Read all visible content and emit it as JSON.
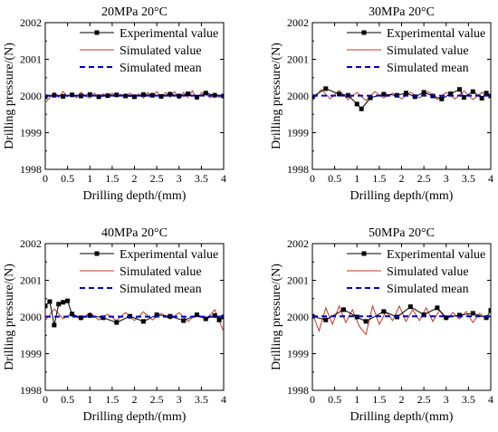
{
  "chart_data": [
    {
      "type": "line",
      "title": "20MPa 20°C",
      "xlabel": "Drilling depth/(mm)",
      "ylabel": "Drilling pressure/(N)",
      "xlim": [
        0,
        4
      ],
      "ylim": [
        1998,
        2002
      ],
      "xticks": [
        0,
        0.5,
        1,
        1.5,
        2,
        2.5,
        3,
        3.5,
        4
      ],
      "xtick_labels": [
        "0",
        "0.5",
        "1",
        "1.5",
        "2",
        "2.5",
        "3",
        "3.5",
        "4"
      ],
      "yticks": [
        1998,
        1999,
        2000,
        2001,
        2002
      ],
      "ytick_labels": [
        "1998",
        "1999",
        "2000",
        "2001",
        "2002"
      ],
      "legend_position": "top-right",
      "grid": false,
      "series": [
        {
          "name": "Experimental value",
          "style": "line-square-markers",
          "color": "#000000",
          "x": [
            0,
            0.2,
            0.4,
            0.6,
            0.8,
            1.0,
            1.2,
            1.4,
            1.6,
            1.8,
            2.0,
            2.2,
            2.4,
            2.6,
            2.8,
            3.0,
            3.2,
            3.4,
            3.6,
            3.8,
            4.0
          ],
          "y": [
            1999.98,
            2000.02,
            1999.99,
            2000.03,
            2000.0,
            2000.04,
            1999.98,
            2000.01,
            2000.03,
            2000.0,
            1999.98,
            2000.04,
            2000.02,
            1999.99,
            2000.05,
            2000.0,
            2000.06,
            1999.97,
            2000.08,
            2000.02,
            2000.0
          ]
        },
        {
          "name": "Simulated value",
          "style": "line",
          "color": "#c0392b",
          "x": [
            0,
            0.1,
            0.2,
            0.3,
            0.4,
            0.5,
            0.6,
            0.7,
            0.8,
            0.9,
            1.0,
            1.1,
            1.2,
            1.3,
            1.4,
            1.5,
            1.6,
            1.7,
            1.8,
            1.9,
            2.0,
            2.1,
            2.2,
            2.3,
            2.4,
            2.5,
            2.6,
            2.7,
            2.8,
            2.9,
            3.0,
            3.1,
            3.2,
            3.3,
            3.4,
            3.5,
            3.6,
            3.7,
            3.8,
            3.9,
            4.0
          ],
          "y": [
            1999.82,
            1999.95,
            2000.1,
            1999.96,
            2000.12,
            1999.98,
            2000.08,
            1999.95,
            2000.1,
            2000.0,
            1999.94,
            2000.08,
            1999.97,
            2000.06,
            1999.96,
            2000.08,
            1999.98,
            2000.05,
            1999.96,
            2000.08,
            1999.98,
            2000.06,
            1999.94,
            2000.1,
            1999.96,
            2000.12,
            1999.94,
            2000.1,
            1999.96,
            2000.12,
            1999.92,
            2000.1,
            1999.96,
            2000.14,
            1999.9,
            2000.1,
            2000.04,
            1999.95,
            2000.08,
            1999.96,
            2000.0
          ]
        },
        {
          "name": "Simulated mean",
          "style": "dashed",
          "color": "#0000cc",
          "x": [
            0,
            4
          ],
          "y": [
            2000.01,
            2000.01
          ]
        }
      ]
    },
    {
      "type": "line",
      "title": "30MPa 20°C",
      "xlabel": "Drilling depth/(mm)",
      "ylabel": "Drilling pressure/(N)",
      "xlim": [
        0,
        4
      ],
      "ylim": [
        1998,
        2002
      ],
      "xticks": [
        0,
        0.5,
        1,
        1.5,
        2,
        2.5,
        3,
        3.5,
        4
      ],
      "xtick_labels": [
        "0",
        "0.5",
        "1",
        "1.5",
        "2",
        "2.5",
        "3",
        "3.5",
        "4"
      ],
      "yticks": [
        1998,
        1999,
        2000,
        2001,
        2002
      ],
      "ytick_labels": [
        "1998",
        "1999",
        "2000",
        "2001",
        "2002"
      ],
      "legend_position": "top-right",
      "grid": false,
      "series": [
        {
          "name": "Experimental value",
          "style": "line-square-markers",
          "color": "#000000",
          "x": [
            0,
            0.3,
            0.6,
            0.8,
            1.0,
            1.1,
            1.3,
            1.6,
            1.9,
            2.1,
            2.3,
            2.5,
            2.7,
            2.9,
            3.1,
            3.3,
            3.4,
            3.6,
            3.8,
            3.9,
            4.0
          ],
          "y": [
            1999.98,
            2000.2,
            2000.05,
            2000.02,
            1999.78,
            1999.65,
            1999.95,
            2000.05,
            2000.02,
            2000.08,
            1999.98,
            2000.1,
            2000.0,
            1999.92,
            2000.06,
            2000.18,
            1999.96,
            2000.12,
            1999.94,
            2000.08,
            2000.0
          ]
        },
        {
          "name": "Simulated value",
          "style": "line",
          "color": "#c0392b",
          "x": [
            0,
            0.2,
            0.4,
            0.6,
            0.8,
            1.0,
            1.2,
            1.4,
            1.6,
            1.8,
            2.0,
            2.2,
            2.4,
            2.6,
            2.8,
            3.0,
            3.2,
            3.4,
            3.6,
            3.8,
            4.0
          ],
          "y": [
            1999.88,
            2000.18,
            1999.92,
            2000.15,
            1999.9,
            2000.1,
            1999.88,
            2000.12,
            1999.95,
            2000.08,
            1999.92,
            2000.1,
            1999.95,
            2000.12,
            1999.9,
            2000.1,
            1999.92,
            2000.14,
            1999.9,
            2000.1,
            1999.96
          ]
        },
        {
          "name": "Simulated mean",
          "style": "dashed",
          "color": "#0000cc",
          "x": [
            0,
            4
          ],
          "y": [
            2000.01,
            2000.01
          ]
        }
      ]
    },
    {
      "type": "line",
      "title": "40MPa 20°C",
      "xlabel": "Drilling depth/(mm)",
      "ylabel": "Drilling pressure/(N)",
      "xlim": [
        0,
        4
      ],
      "ylim": [
        1998,
        2002
      ],
      "xticks": [
        0,
        0.5,
        1,
        1.5,
        2,
        2.5,
        3,
        3.5,
        4
      ],
      "xtick_labels": [
        "0",
        "0.5",
        "1",
        "1.5",
        "2",
        "2.5",
        "3",
        "3.5",
        "4"
      ],
      "yticks": [
        1998,
        1999,
        2000,
        2001,
        2002
      ],
      "ytick_labels": [
        "1998",
        "1999",
        "2000",
        "2001",
        "2002"
      ],
      "legend_position": "top-right",
      "grid": false,
      "series": [
        {
          "name": "Experimental value",
          "style": "line-square-markers",
          "color": "#000000",
          "x": [
            0,
            0.1,
            0.2,
            0.3,
            0.4,
            0.5,
            0.6,
            0.8,
            1.0,
            1.3,
            1.6,
            1.9,
            2.2,
            2.5,
            2.8,
            3.1,
            3.4,
            3.6,
            3.8,
            3.9,
            4.0
          ],
          "y": [
            2000.3,
            2000.42,
            1999.78,
            2000.35,
            2000.4,
            2000.44,
            2000.08,
            1999.98,
            2000.04,
            1999.98,
            1999.85,
            2000.02,
            1999.88,
            2000.06,
            2000.02,
            1999.9,
            2000.06,
            1999.95,
            2000.04,
            1999.92,
            2000.0
          ]
        },
        {
          "name": "Simulated value",
          "style": "line",
          "color": "#c0392b",
          "x": [
            0,
            0.2,
            0.4,
            0.6,
            0.8,
            1.0,
            1.2,
            1.4,
            1.6,
            1.8,
            2.0,
            2.2,
            2.4,
            2.6,
            2.8,
            3.0,
            3.2,
            3.4,
            3.6,
            3.8,
            4.0
          ],
          "y": [
            1999.9,
            2000.22,
            1999.95,
            2000.1,
            1999.92,
            2000.12,
            1999.92,
            2000.08,
            1999.9,
            2000.12,
            1999.9,
            2000.14,
            1999.92,
            2000.1,
            1999.94,
            2000.12,
            1999.88,
            2000.08,
            1999.92,
            2000.2,
            1999.6
          ]
        },
        {
          "name": "Simulated mean",
          "style": "dashed",
          "color": "#0000cc",
          "x": [
            0,
            4
          ],
          "y": [
            2000.01,
            2000.01
          ]
        }
      ]
    },
    {
      "type": "line",
      "title": "50MPa 20°C",
      "xlabel": "Drilling depth/(mm)",
      "ylabel": "Drilling pressure/(N)",
      "xlim": [
        0,
        4
      ],
      "ylim": [
        1998,
        2002
      ],
      "xticks": [
        0,
        0.5,
        1,
        1.5,
        2,
        2.5,
        3,
        3.5,
        4
      ],
      "xtick_labels": [
        "0",
        "0.5",
        "1",
        "1.5",
        "2",
        "2.5",
        "3",
        "3.5",
        "4"
      ],
      "yticks": [
        1998,
        1999,
        2000,
        2001,
        2002
      ],
      "ytick_labels": [
        "1998",
        "1999",
        "2000",
        "2001",
        "2002"
      ],
      "legend_position": "top-right",
      "grid": false,
      "series": [
        {
          "name": "Experimental value",
          "style": "line-square-markers",
          "color": "#000000",
          "x": [
            0,
            0.3,
            0.7,
            1.0,
            1.2,
            1.6,
            1.9,
            2.2,
            2.5,
            2.8,
            3.0,
            3.3,
            3.6,
            3.9,
            4.0
          ],
          "y": [
            2000.02,
            1999.92,
            2000.2,
            2000.0,
            1999.88,
            2000.15,
            2000.0,
            2000.28,
            2000.06,
            2000.25,
            1999.98,
            2000.05,
            2000.1,
            1999.98,
            2000.18
          ]
        },
        {
          "name": "Simulated value",
          "style": "line",
          "color": "#c0392b",
          "x": [
            0,
            0.15,
            0.3,
            0.45,
            0.6,
            0.75,
            0.9,
            1.05,
            1.2,
            1.35,
            1.5,
            1.65,
            1.8,
            1.95,
            2.1,
            2.25,
            2.4,
            2.55,
            2.7,
            2.85,
            3.0,
            3.15,
            3.3,
            3.45,
            3.6,
            3.75,
            3.9,
            4.0
          ],
          "y": [
            2000.1,
            1999.62,
            2000.25,
            1999.8,
            2000.3,
            1999.85,
            2000.2,
            1999.75,
            1999.52,
            2000.3,
            1999.8,
            2000.15,
            1999.9,
            2000.3,
            1999.88,
            2000.2,
            1999.9,
            2000.25,
            1999.88,
            2000.18,
            1999.92,
            2000.12,
            1999.95,
            2000.15,
            1999.85,
            2000.1,
            1999.96,
            2000.05
          ]
        },
        {
          "name": "Simulated mean",
          "style": "dashed",
          "color": "#0000cc",
          "x": [
            0,
            4
          ],
          "y": [
            2000.02,
            2000.02
          ]
        }
      ]
    }
  ]
}
